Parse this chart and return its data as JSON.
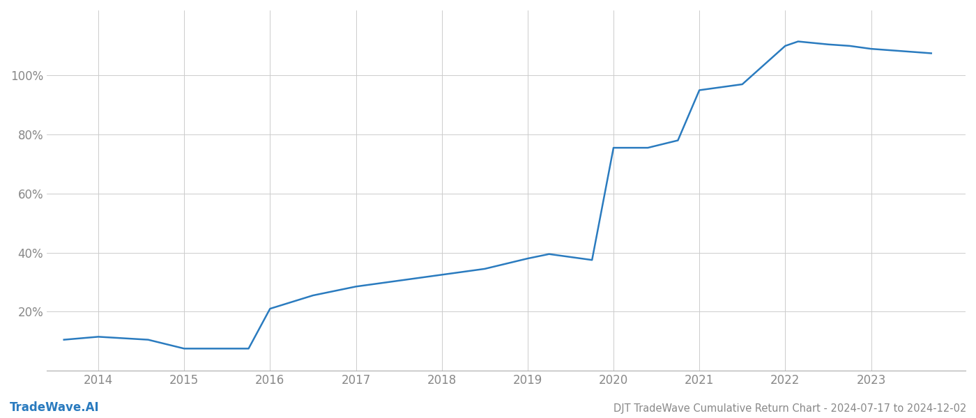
{
  "x_values": [
    2013.6,
    2014.0,
    2014.58,
    2015.0,
    2015.58,
    2015.75,
    2016.0,
    2016.5,
    2017.0,
    2017.5,
    2018.0,
    2018.5,
    2019.0,
    2019.25,
    2019.75,
    2020.0,
    2020.4,
    2020.75,
    2021.0,
    2021.5,
    2022.0,
    2022.15,
    2022.5,
    2022.75,
    2023.0,
    2023.7
  ],
  "y_values": [
    0.105,
    0.115,
    0.105,
    0.075,
    0.075,
    0.075,
    0.21,
    0.255,
    0.285,
    0.305,
    0.325,
    0.345,
    0.38,
    0.395,
    0.375,
    0.755,
    0.755,
    0.78,
    0.95,
    0.97,
    1.1,
    1.115,
    1.105,
    1.1,
    1.09,
    1.075
  ],
  "line_color": "#2a7bbf",
  "line_width": 1.8,
  "background_color": "#ffffff",
  "grid_color": "#cccccc",
  "title": "DJT TradeWave Cumulative Return Chart - 2024-07-17 to 2024-12-02",
  "watermark": "TradeWave.AI",
  "x_ticks": [
    2014,
    2015,
    2016,
    2017,
    2018,
    2019,
    2020,
    2021,
    2022,
    2023
  ],
  "y_ticks": [
    0.2,
    0.4,
    0.6,
    0.8,
    1.0
  ],
  "y_tick_labels": [
    "20%",
    "40%",
    "60%",
    "80%",
    "100%"
  ],
  "xlim": [
    2013.4,
    2024.1
  ],
  "ylim": [
    0.0,
    1.22
  ],
  "tick_color": "#888888",
  "spine_color": "#aaaaaa",
  "title_fontsize": 10.5,
  "watermark_fontsize": 12,
  "tick_fontsize": 12
}
